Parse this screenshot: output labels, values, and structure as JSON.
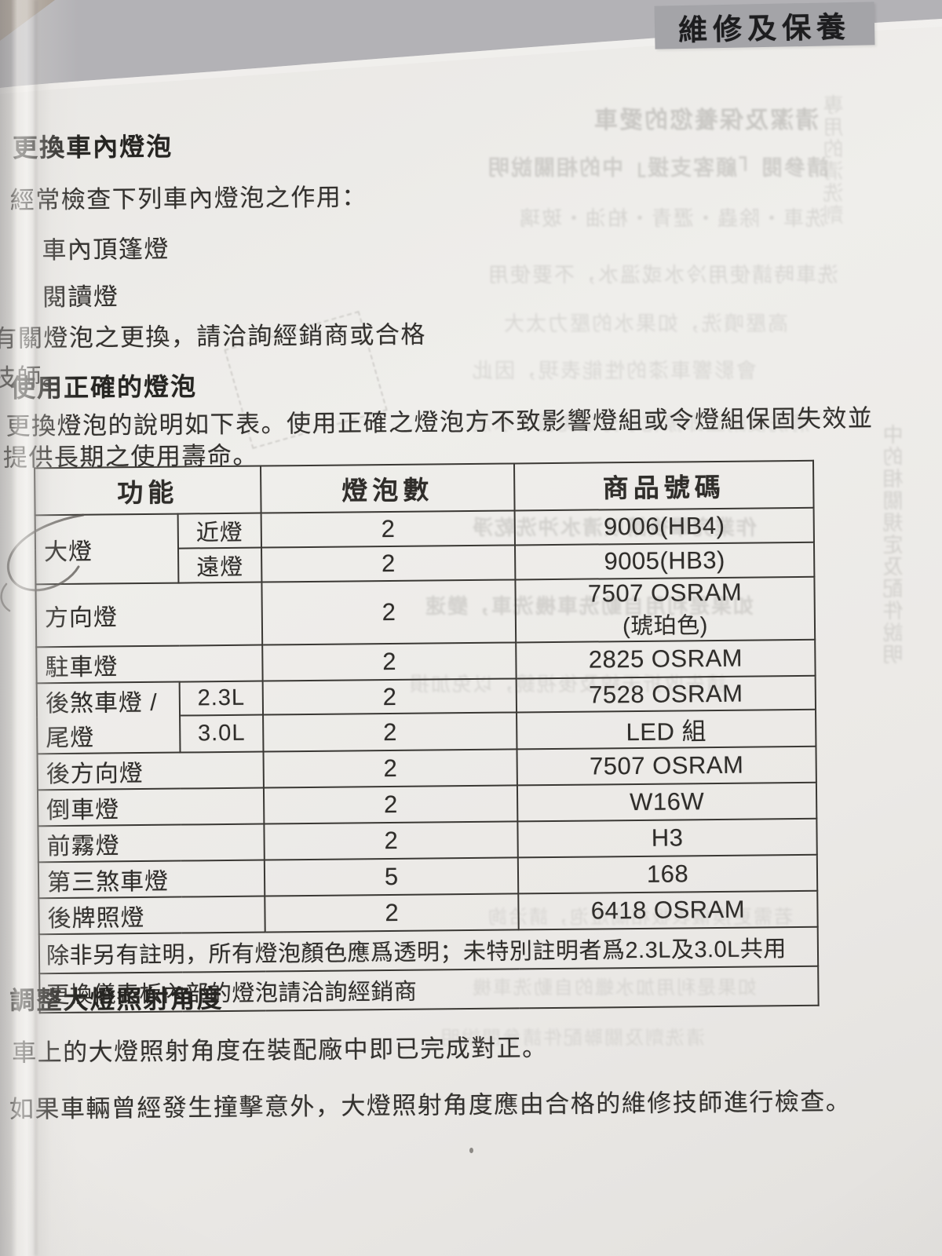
{
  "banner": {
    "label": "維修及保養"
  },
  "sections": {
    "replace_bulbs": {
      "title": "更換車內燈泡",
      "intro": "經常檢查下列車內燈泡之作用：",
      "items": [
        "車內頂篷燈",
        "閱讀燈"
      ],
      "note_lines": [
        "有關燈泡之更換，請洽詢經銷商或合格",
        "技師。"
      ]
    },
    "correct_bulbs": {
      "title": "使用正確的燈泡",
      "body_lines": [
        "更換燈泡的說明如下表。使用正確之燈泡方不致影響燈組或令燈組保固失效並",
        "提供長期之使用壽命。"
      ]
    },
    "headlight_aim": {
      "title": "調整大燈照射角度",
      "p1": "車上的大燈照射角度在裝配廠中即已完成對正。",
      "p2": "如果車輛曾經發生撞擊意外，大燈照射角度應由合格的維修技師進行檢查。"
    }
  },
  "table": {
    "headers": [
      "功能",
      "燈泡數",
      "商品號碼"
    ],
    "rows": [
      {
        "function": "大燈",
        "variant": "近燈",
        "count": "2",
        "product": "9006(HB4)"
      },
      {
        "variant": "遠燈",
        "count": "2",
        "product": "9005(HB3)"
      },
      {
        "function": "方向燈",
        "count": "2",
        "product": "7507 OSRAM",
        "product2": "(琥珀色)"
      },
      {
        "function": "駐車燈",
        "count": "2",
        "product": "2825 OSRAM"
      },
      {
        "function": "後煞車燈 / 尾燈",
        "variant": "2.3L",
        "count": "2",
        "product": "7528 OSRAM"
      },
      {
        "variant": "3.0L",
        "count": "2",
        "product": "LED 組"
      },
      {
        "function": "後方向燈",
        "count": "2",
        "product": "7507 OSRAM"
      },
      {
        "function": "倒車燈",
        "count": "2",
        "product": "W16W"
      },
      {
        "function": "前霧燈",
        "count": "2",
        "product": "H3"
      },
      {
        "function": "第三煞車燈",
        "count": "5",
        "product": "168"
      },
      {
        "function": "後牌照燈",
        "count": "2",
        "product": "6418 OSRAM"
      }
    ],
    "notes": [
      "除非另有註明，所有燈泡顏色應爲透明；未特別註明者爲2.3L及3.0L共用",
      "更換儀表板內部的燈泡請洽詢經銷商"
    ]
  },
  "bleed_through": {
    "lines": [
      "清潔及保養您的愛車",
      "請參閱「顧客支援」中的相關說明",
      "洗車・除蟲・瀝青・柏油・玻璃",
      "洗車時請使用冷水或溫水，不要使用",
      "高壓噴洗，如果水的壓力太大",
      "會影響車漆的性能表現，因此",
      "清洗後請立即擦乾水分以免留下水漬",
      "作業完畢後請以清水沖洗乾淨",
      "如果是利用自動洗車機洗車，變速",
      "請先收折天線及後視鏡，以免加損",
      "若需更換儀表板相關燈泡，請洽詢",
      "如果是利用加水蠟的自動洗車機",
      "清洗劑及關聯配件請參閱說明"
    ],
    "vertical_lines": [
      "中的相關規定及配件說明",
      "專用的清洗劑"
    ]
  }
}
